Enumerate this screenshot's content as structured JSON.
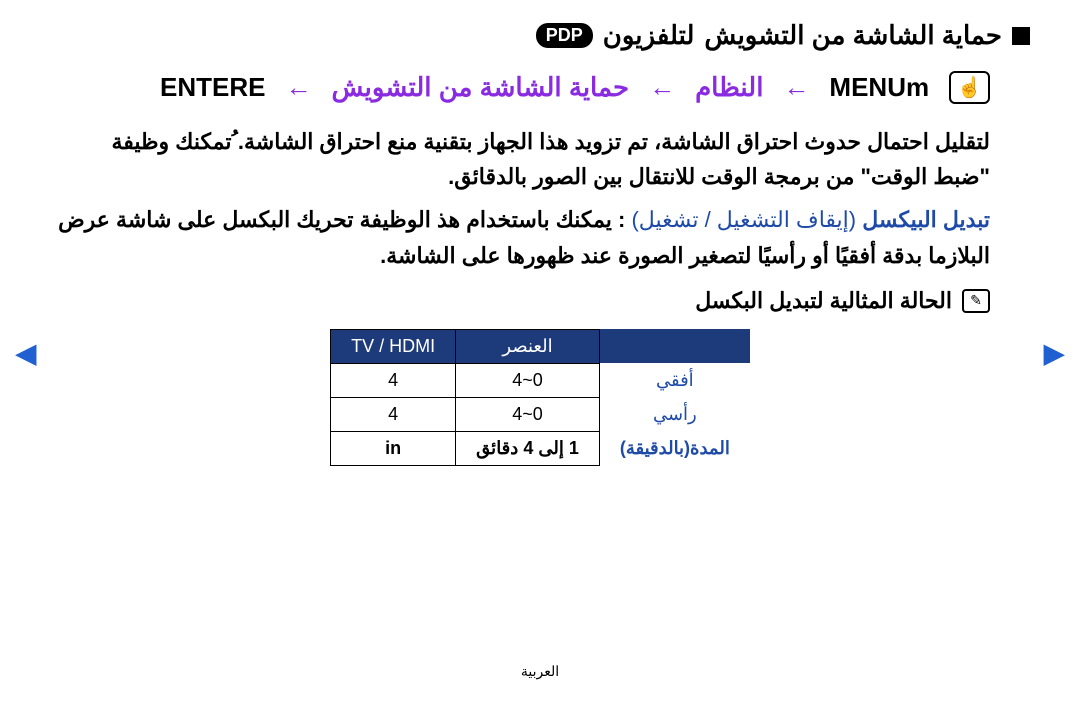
{
  "title": {
    "main": "حماية الشاشة من التشويش",
    "tv_prefix": "لتلفزيون",
    "pdp": "PDP"
  },
  "menu_path": {
    "menu": "MENUm",
    "arrow": "←",
    "system": "النظام",
    "screen_protect": "حماية الشاشة من التشويش",
    "enter": "ENTERE",
    "hand_icon": "☝"
  },
  "para1": "لتقليل احتمال حدوث احتراق الشاشة، تم تزويد هذا الجهاز بتقنية منع احتراق الشاشة. ُتمكنك وظيفة \"ضبط الوقت\" من برمجة الوقت للانتقال بين الصور بالدقائق.",
  "pixel_shift": {
    "label": "تبديل البيكسل",
    "options": "(إيقاف التشغيل / تشغيل)",
    "desc": ": يمكنك باستخدام هذ     الوظيفة تحريك البكسل على شاشة عرض البلازما بدقة أفقيًا أو رأسيًا لتصغير الصورة عند ظهورها على الشاشة."
  },
  "note": {
    "icon": "✎",
    "text": "الحالة المثالية لتبديل البكسل"
  },
  "table": {
    "headers": [
      "",
      "العنصر",
      "TV / HDMI"
    ],
    "rows": [
      {
        "label": "أفقي",
        "item": "0~4",
        "value": "4"
      },
      {
        "label": "رأسي",
        "item": "0~4",
        "value": "4"
      },
      {
        "label": "المدة(بالدقيقة)",
        "item": "1 إلى 4 دقائق",
        "value": "in"
      }
    ]
  },
  "footer_text": "العربية",
  "colors": {
    "header_bg": "#1d3a7a",
    "blue_text": "#1e4aa8",
    "purple": "#8a2be2"
  }
}
